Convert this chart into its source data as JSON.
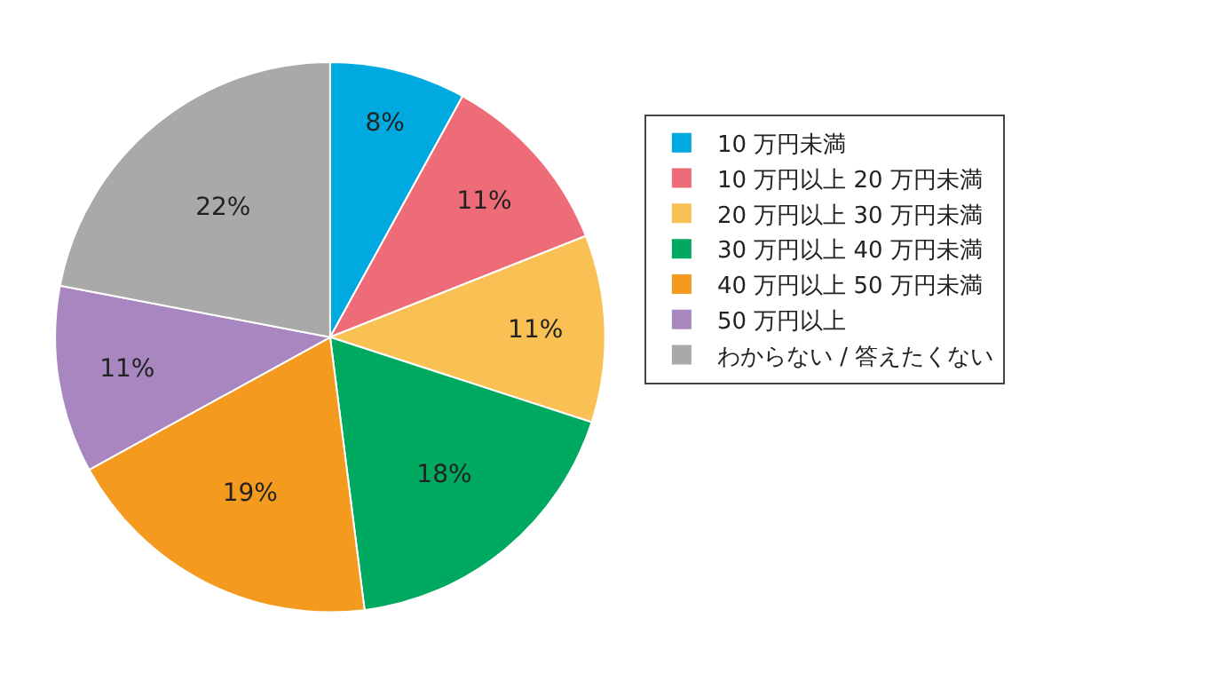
{
  "chart_data": {
    "type": "pie",
    "categories": [
      "10 万円未満",
      "10 万円以上 20 万円未満",
      "20 万円以上 30 万円未満",
      "30 万円以上 40 万円未満",
      "40 万円以上 50 万円未満",
      "50 万円以上",
      "わからない / 答えたくない"
    ],
    "values": [
      8,
      11,
      11,
      18,
      19,
      11,
      22
    ],
    "value_labels": [
      "8%",
      "11%",
      "11%",
      "18%",
      "19%",
      "11%",
      "22%"
    ],
    "colors": [
      "#00a9e0",
      "#ee6b78",
      "#f9c153",
      "#00a960",
      "#f39a1f",
      "#a886c0",
      "#a9a9a9"
    ],
    "legend": "right"
  }
}
